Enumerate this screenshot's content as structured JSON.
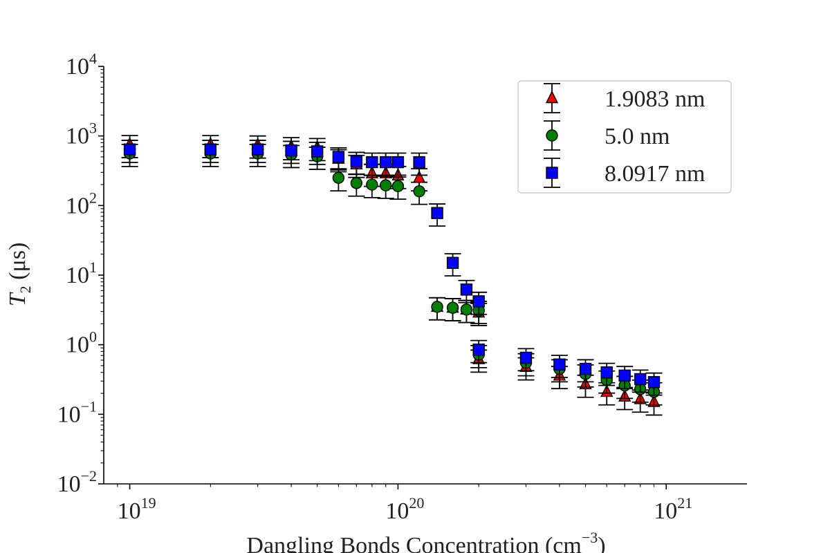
{
  "chart_data": {
    "type": "scatter",
    "xlabel": "Dangling Bonds Concentration (cm",
    "xlabel_unit_exponent": "−3",
    "xlabel_close": ")",
    "ylabel_symbol": "T",
    "ylabel_sub": "2",
    "ylabel_unit": "(μs)",
    "xscale": "log",
    "yscale": "log",
    "xlim": [
      8e+18,
      2e+21
    ],
    "ylim": [
      0.01,
      10000
    ],
    "x_ticks": [
      {
        "base": "10",
        "exp": "19",
        "value": 1e+19
      },
      {
        "base": "10",
        "exp": "20",
        "value": 1e+20
      },
      {
        "base": "10",
        "exp": "21",
        "value": 1e+21
      }
    ],
    "y_ticks": [
      {
        "base": "10",
        "exp": "−2",
        "value": 0.01
      },
      {
        "base": "10",
        "exp": "−1",
        "value": 0.1
      },
      {
        "base": "10",
        "exp": "0",
        "value": 1
      },
      {
        "base": "10",
        "exp": "1",
        "value": 10
      },
      {
        "base": "10",
        "exp": "2",
        "value": 100
      },
      {
        "base": "10",
        "exp": "3",
        "value": 1000
      },
      {
        "base": "10",
        "exp": "4",
        "value": 10000
      }
    ],
    "grid": false,
    "legend_placement": "top-right",
    "error_fraction": 0.35,
    "x": [
      1e+19,
      2e+19,
      3e+19,
      4e+19,
      5e+19,
      6e+19,
      7e+19,
      8e+19,
      9e+19,
      1e+20,
      1.2e+20,
      1.4e+20,
      1.6e+20,
      1.8e+20,
      2e+20,
      2e+20,
      3e+20,
      4e+20,
      5e+20,
      6e+20,
      7e+20,
      8e+20,
      9e+20
    ],
    "series": [
      {
        "name": "1.9083 nm",
        "marker": "triangle",
        "color": "#ff0000",
        "values": [
          750,
          750,
          740,
          700,
          680,
          470,
          390,
          290,
          290,
          270,
          250,
          3.5,
          3.4,
          3.2,
          2.9,
          0.62,
          0.48,
          0.36,
          0.27,
          0.21,
          0.18,
          0.165,
          0.15
        ]
      },
      {
        "name": "5.0 nm",
        "marker": "circle",
        "color": "#008000",
        "values": [
          560,
          560,
          560,
          540,
          510,
          250,
          210,
          200,
          195,
          190,
          160,
          3.5,
          3.4,
          3.2,
          3.1,
          0.72,
          0.55,
          0.45,
          0.38,
          0.31,
          0.26,
          0.23,
          0.21
        ]
      },
      {
        "name": "8.0917 nm",
        "marker": "square",
        "color": "#0000ff",
        "values": [
          640,
          640,
          640,
          620,
          600,
          500,
          430,
          420,
          420,
          420,
          420,
          78,
          15,
          6.2,
          4.2,
          0.85,
          0.65,
          0.52,
          0.45,
          0.4,
          0.36,
          0.32,
          0.29
        ]
      }
    ]
  }
}
